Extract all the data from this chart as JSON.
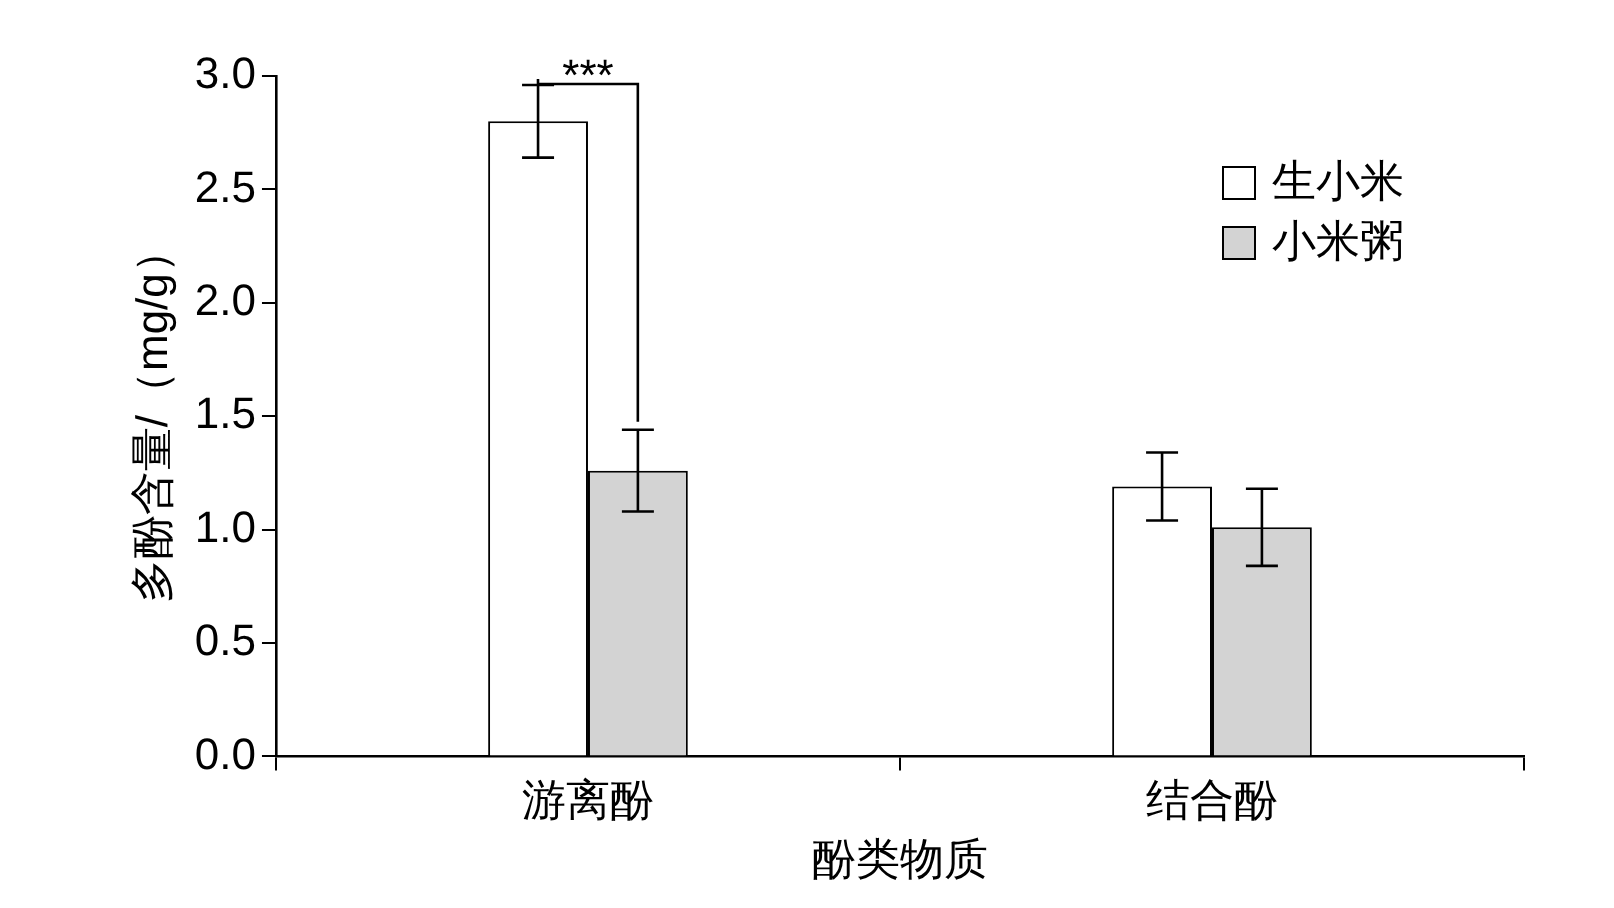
{
  "chart_data": {
    "type": "bar",
    "xlabel": "酚类物质",
    "ylabel": "多酚含量/（mg/g）",
    "categories": [
      "游离酚",
      "结合酚"
    ],
    "series": [
      {
        "name": "生小米",
        "color": "#ffffff",
        "values": [
          2.8,
          1.19
        ],
        "errors": [
          0.16,
          0.15
        ]
      },
      {
        "name": "小米粥",
        "color": "#d3d3d3",
        "values": [
          1.26,
          1.01
        ],
        "errors": [
          0.18,
          0.17
        ]
      }
    ],
    "ylim": [
      0,
      3.0
    ],
    "yticks": [
      {
        "value": 0,
        "label": "0.0"
      },
      {
        "value": 0.5,
        "label": "0.5"
      },
      {
        "value": 1,
        "label": "1.0"
      },
      {
        "value": 1.5,
        "label": "1.5"
      },
      {
        "value": 2,
        "label": "2.0"
      },
      {
        "value": 2.5,
        "label": "2.5"
      },
      {
        "value": 3,
        "label": "3.0"
      }
    ],
    "annotations": [
      {
        "text": "***",
        "x": "游离酚",
        "y": 2.8
      }
    ],
    "grid": false,
    "legend": "top right"
  }
}
